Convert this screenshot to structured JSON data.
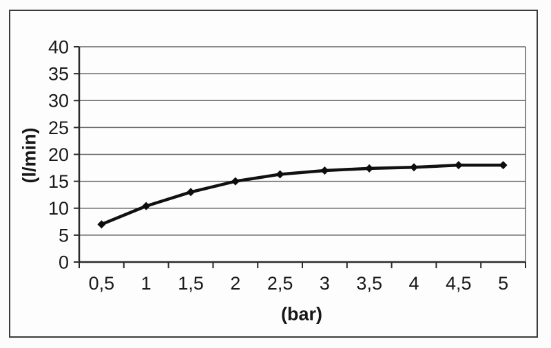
{
  "chart_data": {
    "type": "line",
    "title": "",
    "xlabel": "(bar)",
    "ylabel": "(l/min)",
    "categories": [
      "0,5",
      "1",
      "1,5",
      "2",
      "2,5",
      "3",
      "3,5",
      "4",
      "4,5",
      "5"
    ],
    "x_values": [
      0.5,
      1,
      1.5,
      2,
      2.5,
      3,
      3.5,
      4,
      4.5,
      5
    ],
    "series": [
      {
        "values": [
          7,
          10.4,
          13,
          15,
          16.3,
          17,
          17.4,
          17.6,
          18,
          18
        ]
      }
    ],
    "y_ticks": [
      0,
      5,
      10,
      15,
      20,
      25,
      30,
      35,
      40
    ],
    "ylim": [
      0,
      40
    ],
    "grid": "horizontal",
    "legend": "none",
    "marker": "diamond",
    "colors": {
      "line": "#111111",
      "marker": "#0d0d0d",
      "gridline": "#666666",
      "axis": "#2a2a2a",
      "tick_text": "#1a1a1a",
      "frame_border": "#3b3b3b",
      "background": "#fdfdfd"
    }
  }
}
